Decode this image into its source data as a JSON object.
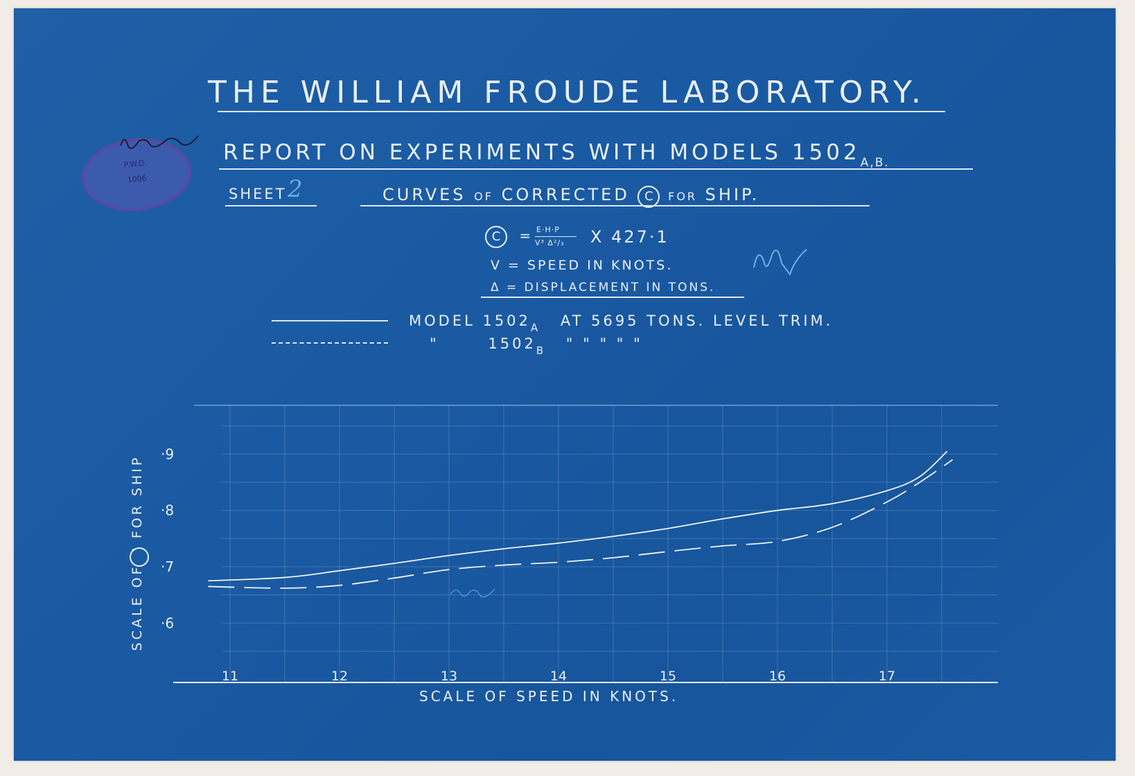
{
  "header": {
    "title": "THE WILLIAM FROUDE LABORATORY.",
    "subtitle": "REPORT ON EXPERIMENTS WITH MODELS 1502",
    "subtitle_suffix": "A,B.",
    "sheet_label": "SHEET",
    "sheet_number": "2",
    "curves_prefix": "CURVES",
    "curves_of": "OF",
    "curves_corrected": "CORRECTED",
    "curves_symbol": "C",
    "curves_for": "FOR",
    "curves_ship": "SHIP."
  },
  "formula": {
    "c_symbol": "C",
    "c_eq": "=",
    "c_numerator": "E·H·P",
    "c_denominator": "V³ Δ²/₃",
    "c_factor": "X 427·1",
    "v_line": "V  =  SPEED  IN  KNOTS.",
    "delta_line": "Δ  =  DISPLACEMENT  IN  TONS."
  },
  "legend": {
    "line1": "MODEL  1502",
    "line1_sub": "A",
    "line1_rest": "AT  5695  TONS.  LEVEL  TRIM.",
    "line2_ditto1": "\"",
    "line2_model": "1502",
    "line2_sub": "B",
    "line2_rest": "\"      \"      \"      \"      \""
  },
  "stamp": {
    "line1": "P.W.D.",
    "line2": "1006"
  },
  "chart_data": {
    "type": "line",
    "xlabel": "SCALE OF SPEED IN KNOTS.",
    "ylabel": "SCALE OF C FOR SHIP",
    "x_ticks": [
      "11",
      "12",
      "13",
      "14",
      "15",
      "16",
      "17"
    ],
    "y_ticks": [
      "·6",
      "·7",
      "·8",
      "·9"
    ],
    "xlim": [
      10.5,
      18
    ],
    "ylim": [
      0.55,
      1.0
    ],
    "grid": true,
    "series": [
      {
        "name": "MODEL 1502A AT 5695 TONS. LEVEL TRIM.",
        "style": "solid",
        "x": [
          10.8,
          11.5,
          12.0,
          12.5,
          13.0,
          13.5,
          14.0,
          14.5,
          15.0,
          15.5,
          16.0,
          16.5,
          17.0,
          17.3,
          17.55
        ],
        "y": [
          0.675,
          0.681,
          0.693,
          0.706,
          0.72,
          0.732,
          0.742,
          0.754,
          0.768,
          0.785,
          0.8,
          0.812,
          0.835,
          0.86,
          0.905
        ]
      },
      {
        "name": "1502B",
        "style": "dashed",
        "x": [
          10.8,
          11.5,
          12.0,
          12.5,
          13.0,
          13.5,
          14.0,
          14.5,
          15.0,
          15.5,
          16.0,
          16.5,
          17.0,
          17.3,
          17.6
        ],
        "y": [
          0.665,
          0.662,
          0.667,
          0.68,
          0.695,
          0.703,
          0.708,
          0.716,
          0.727,
          0.737,
          0.745,
          0.77,
          0.815,
          0.85,
          0.89
        ]
      }
    ]
  }
}
